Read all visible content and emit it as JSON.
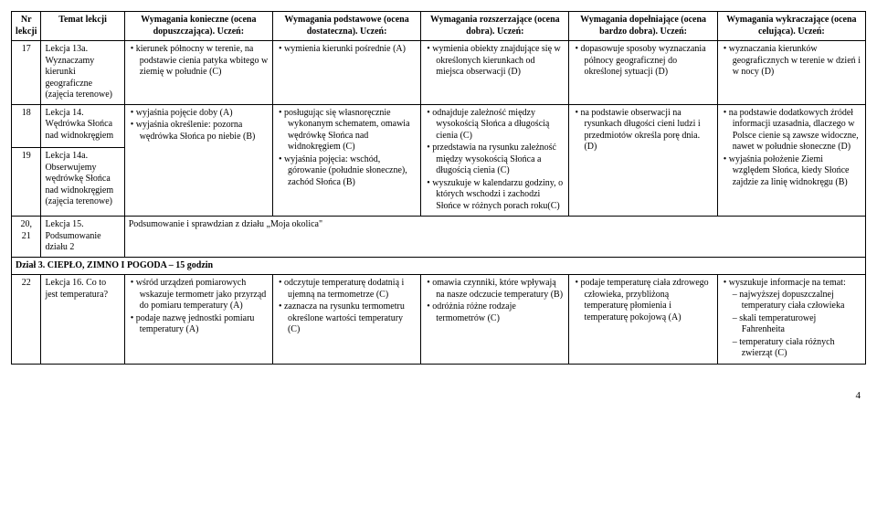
{
  "headers": {
    "nr": "Nr lekcji",
    "temat": "Temat lekcji",
    "konieczne": "Wymagania konieczne (ocena dopuszczająca). Uczeń:",
    "podstawowe": "Wymagania podstawowe (ocena dostateczna). Uczeń:",
    "rozszerz": "Wymagania rozszerzające (ocena dobra). Uczeń:",
    "dopeln": "Wymagania dopełniające (ocena bardzo dobra). Uczeń:",
    "wykracz": "Wymagania wykraczające (ocena celująca). Uczeń:"
  },
  "rows": {
    "r17": {
      "nr": "17",
      "temat": "Lekcja 13a. Wyznaczamy kierunki geograficzne (zajęcia terenowe)",
      "k1": "kierunek północny w terenie, na podstawie cienia patyka wbitego w ziemię w południe (C)",
      "p1": "wymienia kierunki pośrednie (A)",
      "ro1": "wymienia obiekty znajdujące się w określonych kierunkach od miejsca obserwacji (D)",
      "d1": "dopasowuje sposoby wyznaczania północy geograficznej do określonej sytuacji (D)",
      "w1": "wyznaczania kierunków geograficznych w terenie w dzień i w nocy (D)"
    },
    "r18": {
      "nr": "18",
      "temat": "Lekcja 14. Wędrówka Słońca nad widnokręgiem",
      "k1": "wyjaśnia pojęcie doby (A)",
      "k2": "wyjaśnia określenie: pozorna wędrówka Słońca po niebie (B)",
      "p1": "posługując się własnoręcznie wykonanym schematem, omawia wędrówkę Słońca nad widnokręgiem (C)",
      "p2": "wyjaśnia pojęcia: wschód, górowanie (południe słoneczne), zachód Słońca (B)",
      "ro1": "odnajduje zależność między wysokością Słońca a długością cienia (C)",
      "ro2": "przedstawia na rysunku zależność między wysokością Słońca a długością cienia (C)",
      "ro3": "wyszukuje w kalendarzu godziny, o których wschodzi i zachodzi Słońce w różnych porach roku(C)",
      "d1": "na podstawie obserwacji na rysunkach długości cieni ludzi i przedmiotów określa porę dnia. (D)",
      "w1": "na podstawie dodatkowych źródeł informacji uzasadnia, dlaczego w Polsce cienie są zawsze widoczne, nawet w południe słoneczne (D)",
      "w2": "wyjaśnia położenie Ziemi względem Słońca, kiedy Słońce zajdzie za linię widnokręgu (B)"
    },
    "r19": {
      "nr": "19",
      "temat": "Lekcja 14a. Obserwujemy wędrówkę Słońca nad widnokręgiem (zajęcia terenowe)"
    },
    "r2021": {
      "nr": "20, 21",
      "temat": "Lekcja 15. Podsumowanie działu 2",
      "content": "Podsumowanie i sprawdzian z działu „Moja okolica\""
    },
    "section3": {
      "label": "Dział 3. CIEPŁO, ZIMNO I POGODA – 15 godzin"
    },
    "r22": {
      "nr": "22",
      "temat": "Lekcja 16. Co to jest temperatura?",
      "k1": "wśród urządzeń pomiarowych wskazuje termometr jako przyrząd do pomiaru temperatury (A)",
      "k2": "podaje nazwę jednostki pomiaru temperatury (A)",
      "p1": "odczytuje temperaturę dodatnią i ujemną na termometrze (C)",
      "p2": "zaznacza na rysunku termometru określone wartości temperatury (C)",
      "ro1": "omawia czynniki, które wpływają na nasze odczucie temperatury (B)",
      "ro2": "odróżnia różne rodzaje termometrów (C)",
      "d1": "podaje temperaturę ciała zdrowego człowieka, przybliżoną temperaturę płomienia i temperaturę pokojową (A)",
      "w1": "wyszukuje informacje na temat:",
      "w1a": "najwyższej dopuszczalnej temperatury ciała człowieka",
      "w1b": "skali temperaturowej Fahrenheita",
      "w1c": "temperatury ciała różnych zwierząt (C)"
    }
  },
  "pageNumber": "4"
}
